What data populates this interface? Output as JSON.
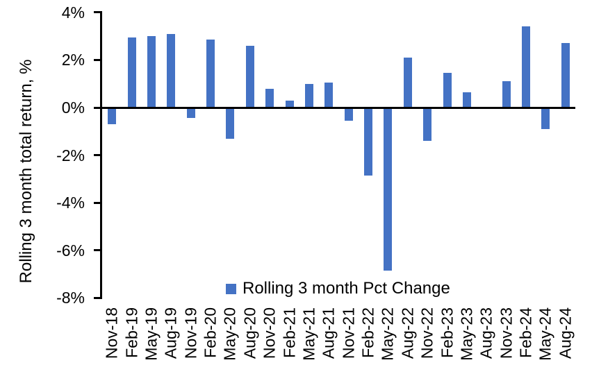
{
  "chart_data": {
    "type": "bar",
    "title": "",
    "categories": [
      "Nov-18",
      "Feb-19",
      "May-19",
      "Aug-19",
      "Nov-19",
      "Feb-20",
      "May-20",
      "Aug-20",
      "Nov-20",
      "Feb-21",
      "May-21",
      "Aug-21",
      "Nov-21",
      "Feb-22",
      "May-22",
      "Aug-22",
      "Nov-22",
      "Feb-23",
      "May-23",
      "Aug-23",
      "Nov-23",
      "Feb-24",
      "May-24",
      "Aug-24"
    ],
    "values": [
      -0.7,
      2.95,
      3.0,
      3.1,
      -0.45,
      2.85,
      -1.3,
      2.6,
      0.8,
      0.3,
      1.0,
      1.05,
      -0.55,
      -2.85,
      -6.85,
      2.1,
      -1.4,
      1.45,
      0.65,
      0.0,
      1.1,
      3.4,
      -0.9,
      2.7
    ],
    "xlabel": "",
    "ylabel": "Rolling 3 month total return, %",
    "ylim": [
      -8,
      4
    ],
    "ytick_values": [
      4,
      2,
      0,
      -2,
      -4,
      -6,
      -8
    ],
    "ytick_labels": [
      "4%",
      "2%",
      "0%",
      "-2%",
      "-4%",
      "-6%",
      "-8%"
    ],
    "legend": [
      "Rolling 3 month Pct Change"
    ],
    "legend_position": "inside-bottom-center",
    "bar_color": "#4472C4",
    "axis_color": "#000000",
    "grid": false
  }
}
